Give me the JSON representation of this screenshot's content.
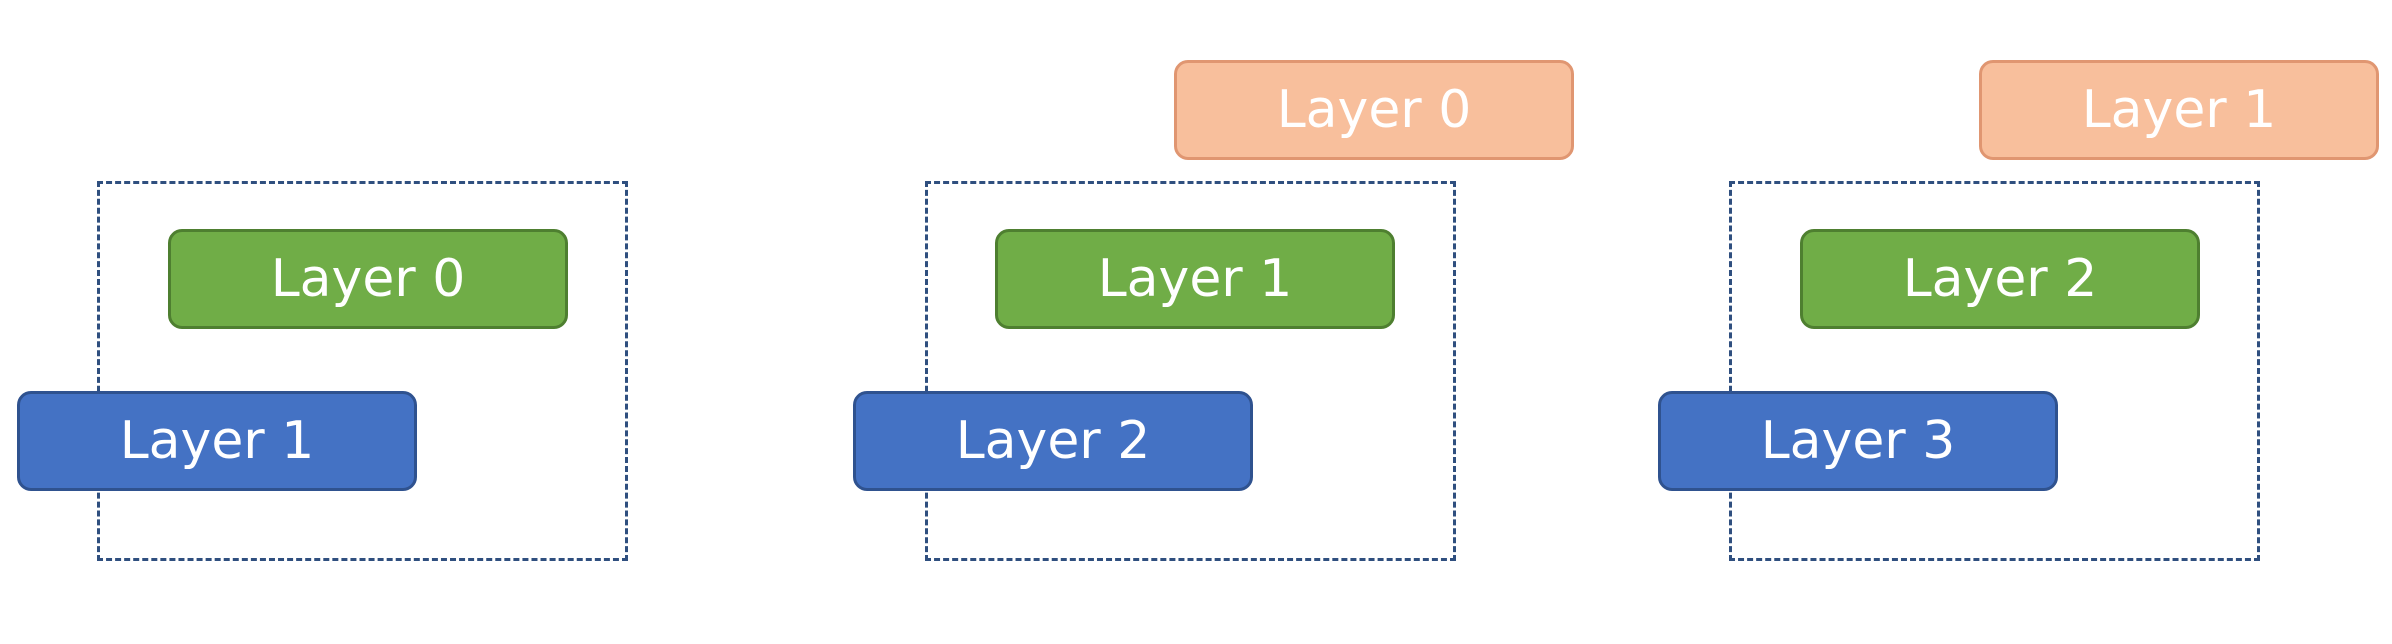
{
  "colors": {
    "green": "#70ad47",
    "blue": "#4472c4",
    "orange": "#f8bf9c",
    "frame": "#2f4f7f"
  },
  "panels": [
    {
      "blocks": {
        "green": "Layer 0",
        "blue": "Layer 1"
      }
    },
    {
      "blocks": {
        "orange": "Layer 0",
        "green": "Layer 1",
        "blue": "Layer 2"
      }
    },
    {
      "blocks": {
        "orange": "Layer 1",
        "green": "Layer 2",
        "blue": "Layer 3"
      }
    }
  ]
}
